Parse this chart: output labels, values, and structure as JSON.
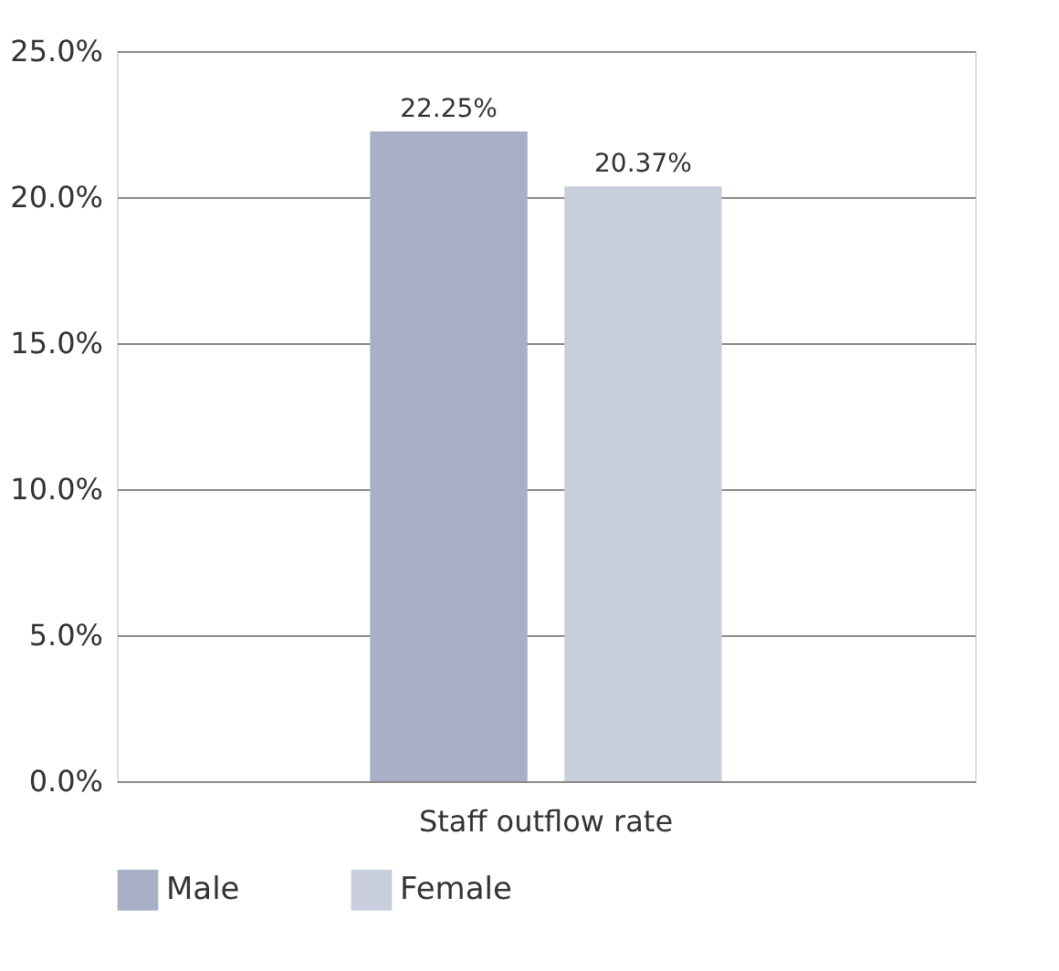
{
  "chart_data": {
    "type": "bar",
    "categories": [
      "Staff outflow rate"
    ],
    "series": [
      {
        "name": "Male",
        "color": "#a8b0c8",
        "values": [
          22.25
        ],
        "value_labels": [
          "22.25%"
        ]
      },
      {
        "name": "Female",
        "color": "#c8cedc",
        "values": [
          20.37
        ],
        "value_labels": [
          "20.37%"
        ]
      }
    ],
    "ylim": [
      0,
      25
    ],
    "yticks": [
      {
        "value": 0,
        "label": "0.0%"
      },
      {
        "value": 5,
        "label": "5.0%"
      },
      {
        "value": 10,
        "label": "10.0%"
      },
      {
        "value": 15,
        "label": "15.0%"
      },
      {
        "value": 20,
        "label": "20.0%"
      },
      {
        "value": 25,
        "label": "25.0%"
      }
    ],
    "grid": "y",
    "legend": "bottom"
  }
}
